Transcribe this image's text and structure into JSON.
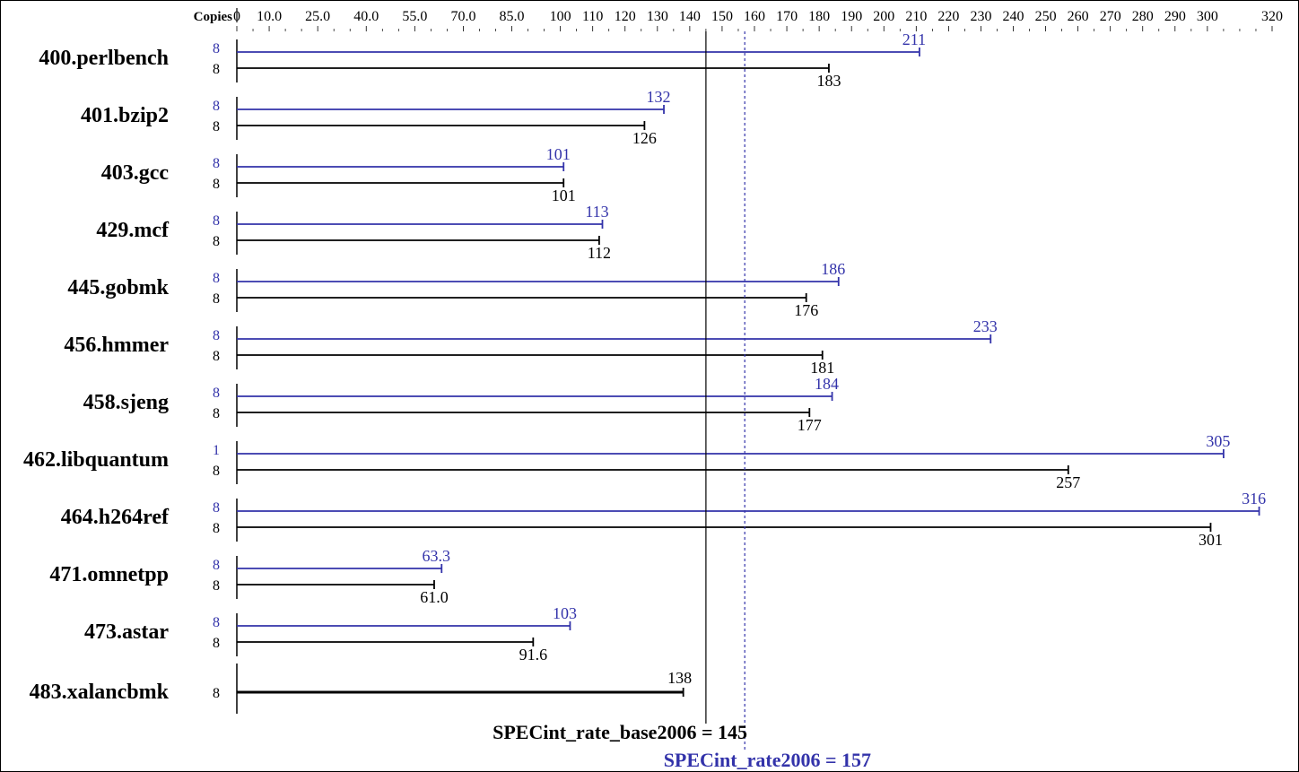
{
  "chart_data": {
    "type": "bar",
    "axis_label": "Copies",
    "ticks": [
      "0",
      "10.0",
      "25.0",
      "40.0",
      "55.0",
      "70.0",
      "85.0",
      "100",
      "110",
      "120",
      "130",
      "140",
      "150",
      "160",
      "170",
      "180",
      "190",
      "200",
      "210",
      "220",
      "230",
      "240",
      "250",
      "260",
      "270",
      "280",
      "290",
      "300",
      "320"
    ],
    "benchmarks": [
      {
        "name": "400.perlbench",
        "peak": {
          "copies": "8",
          "value": 211,
          "label": "211"
        },
        "base": {
          "copies": "8",
          "value": 183,
          "label": "183"
        }
      },
      {
        "name": "401.bzip2",
        "peak": {
          "copies": "8",
          "value": 132,
          "label": "132"
        },
        "base": {
          "copies": "8",
          "value": 126,
          "label": "126"
        }
      },
      {
        "name": "403.gcc",
        "peak": {
          "copies": "8",
          "value": 101,
          "label": "101"
        },
        "base": {
          "copies": "8",
          "value": 101,
          "label": "101"
        }
      },
      {
        "name": "429.mcf",
        "peak": {
          "copies": "8",
          "value": 113,
          "label": "113"
        },
        "base": {
          "copies": "8",
          "value": 112,
          "label": "112"
        }
      },
      {
        "name": "445.gobmk",
        "peak": {
          "copies": "8",
          "value": 186,
          "label": "186"
        },
        "base": {
          "copies": "8",
          "value": 176,
          "label": "176"
        }
      },
      {
        "name": "456.hmmer",
        "peak": {
          "copies": "8",
          "value": 233,
          "label": "233"
        },
        "base": {
          "copies": "8",
          "value": 181,
          "label": "181"
        }
      },
      {
        "name": "458.sjeng",
        "peak": {
          "copies": "8",
          "value": 184,
          "label": "184"
        },
        "base": {
          "copies": "8",
          "value": 177,
          "label": "177"
        }
      },
      {
        "name": "462.libquantum",
        "peak": {
          "copies": "1",
          "value": 305,
          "label": "305"
        },
        "base": {
          "copies": "8",
          "value": 257,
          "label": "257"
        }
      },
      {
        "name": "464.h264ref",
        "peak": {
          "copies": "8",
          "value": 316,
          "label": "316"
        },
        "base": {
          "copies": "8",
          "value": 301,
          "label": "301"
        }
      },
      {
        "name": "471.omnetpp",
        "peak": {
          "copies": "8",
          "value": 63.3,
          "label": "63.3"
        },
        "base": {
          "copies": "8",
          "value": 61.0,
          "label": "61.0"
        }
      },
      {
        "name": "473.astar",
        "peak": {
          "copies": "8",
          "value": 103,
          "label": "103"
        },
        "base": {
          "copies": "8",
          "value": 91.6,
          "label": "91.6"
        }
      },
      {
        "name": "483.xalancbmk",
        "peak": null,
        "base": {
          "copies": "8",
          "value": 138,
          "label": "138"
        }
      }
    ],
    "summary": {
      "base": {
        "label": "SPECint_rate_base2006 = 145",
        "value": 145
      },
      "peak": {
        "label": "SPECint_rate2006 = 157",
        "value": 157
      }
    },
    "colors": {
      "base": "#000000",
      "peak": "#3333aa"
    }
  }
}
